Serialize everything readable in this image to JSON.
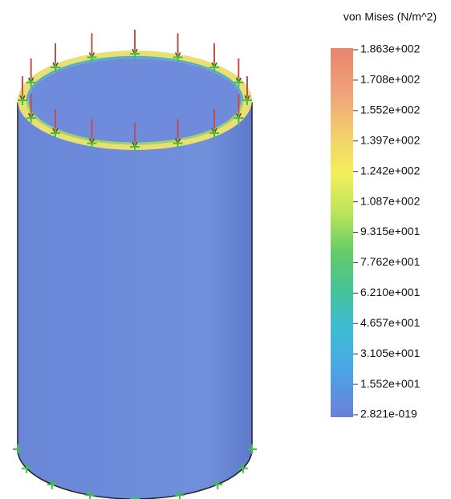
{
  "legend": {
    "title": "von Mises (N/m^2)",
    "labels": [
      "1.863e+002",
      "1.708e+002",
      "1.552e+002",
      "1.397e+002",
      "1.242e+002",
      "1.087e+002",
      "9.315e+001",
      "7.762e+001",
      "6.210e+001",
      "4.657e+001",
      "3.105e+001",
      "1.552e+001",
      "2.821e-019"
    ]
  }
}
